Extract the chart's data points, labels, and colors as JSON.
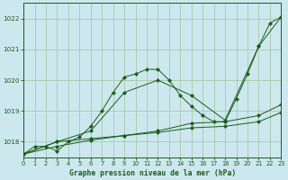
{
  "title": "Graphe pression niveau de la mer (hPa)",
  "background_color": "#cce8ee",
  "grid_color": "#a8c8a8",
  "line_color": "#1a5c1a",
  "xlim": [
    0,
    23
  ],
  "ylim": [
    1017.5,
    1022.5
  ],
  "yticks": [
    1018,
    1019,
    1020,
    1021,
    1022
  ],
  "xticks": [
    0,
    1,
    2,
    3,
    4,
    5,
    6,
    7,
    8,
    9,
    10,
    11,
    12,
    13,
    14,
    15,
    16,
    17,
    18,
    19,
    20,
    21,
    22,
    23
  ],
  "series": [
    {
      "x": [
        0,
        1,
        2,
        3,
        4,
        5,
        6,
        7,
        8,
        9,
        10,
        11,
        12,
        13,
        14,
        15,
        16,
        17,
        18,
        19,
        20,
        21,
        22,
        23
      ],
      "y": [
        1017.6,
        1017.85,
        1017.85,
        1017.7,
        1018.0,
        1018.15,
        1018.5,
        1019.0,
        1019.6,
        1020.1,
        1020.2,
        1020.35,
        1020.35,
        1020.0,
        1019.5,
        1019.15,
        1018.85,
        1018.65,
        1018.65,
        1019.4,
        1020.2,
        1021.1,
        1021.85,
        1022.05
      ]
    },
    {
      "x": [
        0,
        3,
        6,
        9,
        12,
        15,
        18,
        21,
        23
      ],
      "y": [
        1017.6,
        1018.0,
        1018.35,
        1019.6,
        1020.0,
        1019.5,
        1018.7,
        1021.1,
        1022.05
      ]
    },
    {
      "x": [
        0,
        3,
        6,
        9,
        12,
        15,
        18,
        21,
        23
      ],
      "y": [
        1017.6,
        1017.85,
        1018.05,
        1018.2,
        1018.35,
        1018.6,
        1018.65,
        1018.85,
        1019.2
      ]
    },
    {
      "x": [
        0,
        3,
        6,
        9,
        12,
        15,
        18,
        21,
        23
      ],
      "y": [
        1017.6,
        1018.0,
        1018.1,
        1018.2,
        1018.3,
        1018.45,
        1018.5,
        1018.65,
        1018.95
      ]
    }
  ]
}
